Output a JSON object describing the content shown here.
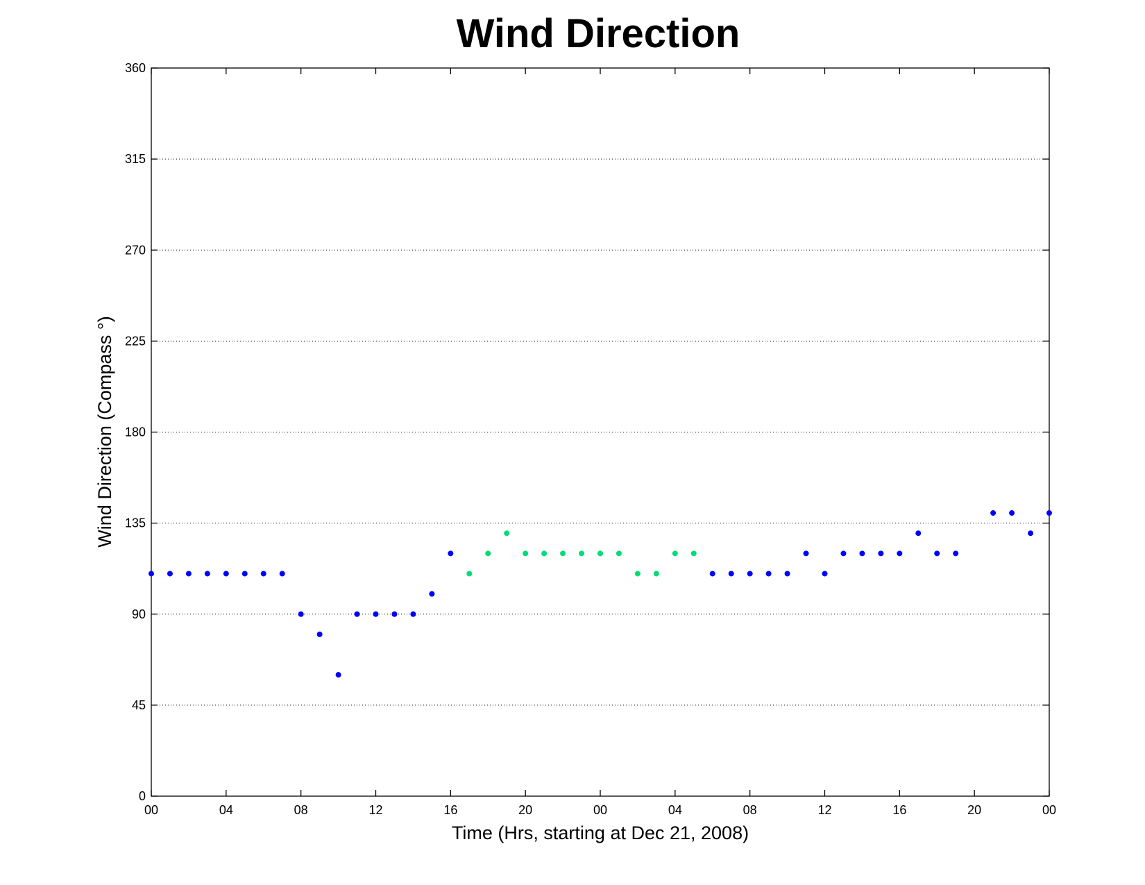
{
  "chart_data": {
    "type": "scatter",
    "title": "Wind Direction",
    "xlabel": "Time (Hrs, starting at Dec 21, 2008)",
    "ylabel": "Wind Direction (Compass  °)",
    "xlim": [
      0,
      48
    ],
    "ylim": [
      0,
      360
    ],
    "yticks": [
      0,
      45,
      90,
      135,
      180,
      225,
      270,
      315,
      360
    ],
    "xticks": [
      0,
      4,
      8,
      12,
      16,
      20,
      24,
      28,
      32,
      36,
      40,
      44,
      48
    ],
    "xtick_labels": [
      "00",
      "04",
      "08",
      "12",
      "16",
      "20",
      "00",
      "04",
      "08",
      "12",
      "16",
      "20",
      "00"
    ],
    "grid": "y-dotted",
    "series": [
      {
        "color": "#0000ff",
        "x": [
          0,
          1,
          2,
          3,
          4,
          5,
          6,
          7,
          8,
          9,
          10,
          11,
          12,
          13,
          14,
          15,
          16,
          30,
          31,
          32,
          33,
          34,
          35,
          36,
          37,
          38,
          39,
          40,
          41,
          42,
          43,
          45,
          46,
          47,
          48
        ],
        "y": [
          110,
          110,
          110,
          110,
          110,
          110,
          110,
          110,
          90,
          80,
          60,
          90,
          90,
          90,
          90,
          100,
          120,
          110,
          110,
          110,
          110,
          110,
          120,
          110,
          120,
          120,
          120,
          120,
          130,
          120,
          120,
          140,
          140,
          130,
          140
        ]
      },
      {
        "color": "#00dd77",
        "x": [
          17,
          18,
          19,
          20,
          21,
          22,
          23,
          24,
          25,
          26,
          27,
          28,
          29
        ],
        "y": [
          110,
          120,
          130,
          120,
          120,
          120,
          120,
          120,
          120,
          110,
          110,
          120,
          120
        ]
      }
    ]
  }
}
